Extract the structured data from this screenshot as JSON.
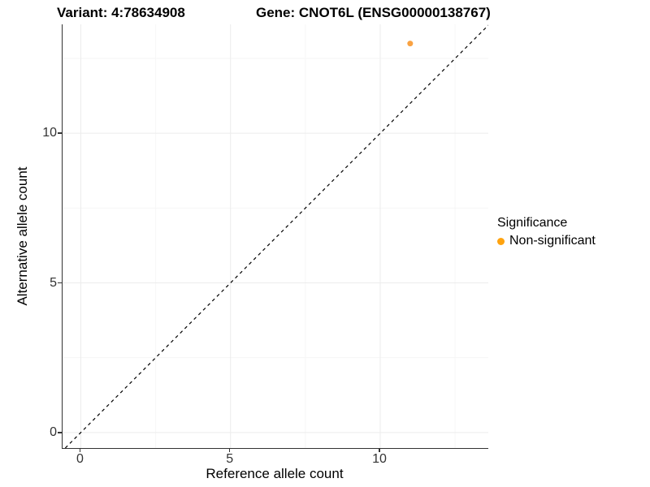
{
  "colors": {
    "non_significant": "#FFA30F",
    "point_fill": "#F9A242",
    "grid_major": "#ececec",
    "grid_minor": "#f6f6f6",
    "axis_line": "#333333",
    "reference_line": "#000000"
  },
  "chart_data": {
    "type": "scatter",
    "title": {
      "variant": "Variant: 4:78634908",
      "gene": "Gene: CNOT6L (ENSG00000138767)"
    },
    "xlabel": "Reference allele count",
    "ylabel": "Alternative allele count",
    "xlim": [
      -0.61,
      13.61
    ],
    "ylim": [
      -0.52,
      13.64
    ],
    "x_major_ticks": [
      0,
      5,
      10
    ],
    "y_major_ticks": [
      0,
      5,
      10
    ],
    "x_tick_labels": [
      "0",
      "5",
      "10"
    ],
    "y_tick_labels": [
      "0",
      "5",
      "10"
    ],
    "x_minor_ticks": [
      2.5,
      7.5,
      12.5
    ],
    "y_minor_ticks": [
      2.5,
      7.5,
      12.5
    ],
    "grid": true,
    "points": [
      {
        "x": 11,
        "y": 13,
        "series": "Non-significant",
        "color": "#F9A242",
        "radius": 3.5
      }
    ],
    "reference_line": {
      "kind": "identity",
      "style": "dashed",
      "color": "#000000"
    },
    "legend": {
      "title": "Significance",
      "position": "right",
      "items": [
        {
          "label": "Non-significant",
          "color": "#FFA30F"
        }
      ]
    }
  }
}
